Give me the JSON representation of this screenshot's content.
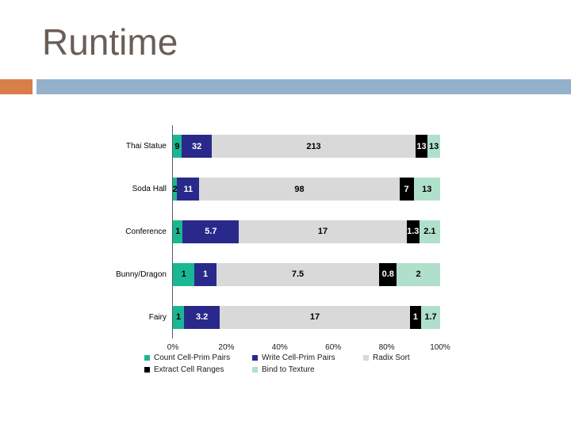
{
  "slide": {
    "title": "Runtime",
    "accent_colors": {
      "orange": "#D87E4A",
      "steel_blue": "#94B1CB"
    },
    "background": "#FFFFFF",
    "title_color": "#6A5E56"
  },
  "chart_data": {
    "type": "bar",
    "orientation": "horizontal",
    "stacked": true,
    "stacked_mode": "percent-of-row-total",
    "title": "",
    "xlabel": "",
    "ylabel": "",
    "categories": [
      "Thai Statue",
      "Soda Hall",
      "Conference",
      "Bunny/Dragon",
      "Fairy"
    ],
    "series": [
      {
        "name": "Count Cell-Prim Pairs",
        "color": "#1AB892",
        "label_color": "#000000",
        "values": [
          9,
          2,
          1,
          1,
          1
        ]
      },
      {
        "name": "Write Cell-Prim Pairs",
        "color": "#29298C",
        "label_color": "#FFFFFF",
        "values": [
          32,
          11,
          5.7,
          1,
          3.2
        ]
      },
      {
        "name": "Radix Sort",
        "color": "#D9D9D9",
        "label_color": "#000000",
        "values": [
          213,
          98,
          17,
          7.5,
          17
        ]
      },
      {
        "name": "Extract Cell Ranges",
        "color": "#000000",
        "label_color": "#FFFFFF",
        "values": [
          13,
          7,
          1.3,
          0.8,
          1
        ]
      },
      {
        "name": "Bind to Texture",
        "color": "#B0E0CB",
        "label_color": "#000000",
        "values": [
          13,
          13,
          2.1,
          2,
          1.7
        ]
      }
    ],
    "x_ticks": [
      "0%",
      "20%",
      "40%",
      "60%",
      "80%",
      "100%"
    ],
    "xlim": [
      0,
      100
    ],
    "grid": false,
    "legend_position": "bottom",
    "axis_line_color": "#595959"
  }
}
